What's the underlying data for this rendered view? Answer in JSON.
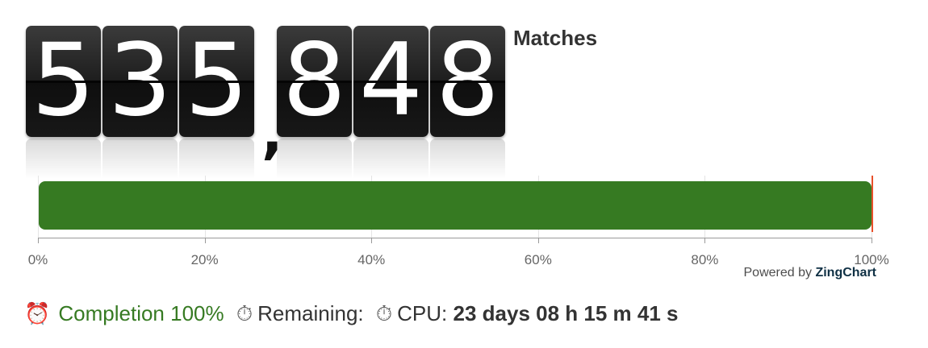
{
  "counter": {
    "digits": [
      "5",
      "3",
      "5",
      "8",
      "4",
      "8"
    ],
    "separator": ",",
    "label": "Matches"
  },
  "progress": {
    "value_percent": 100,
    "ticks": [
      "0%",
      "20%",
      "40%",
      "60%",
      "80%",
      "100%"
    ],
    "bar_color": "#367a22",
    "marker_color": "#e8502a",
    "powered_by_prefix": "Powered by",
    "powered_by_brand": "ZingChart"
  },
  "status": {
    "alarm_icon": "alarm-clock-icon",
    "completion_text": "Completion 100%",
    "stopwatch_icon": "stopwatch-icon",
    "remaining_label": "Remaining:",
    "cpu_label": "CPU:",
    "cpu_value": "23 days 08 h 15 m 41 s"
  }
}
